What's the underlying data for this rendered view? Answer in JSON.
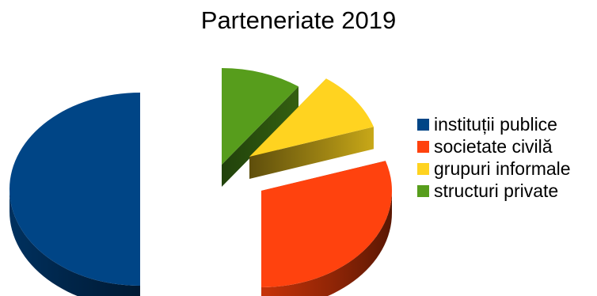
{
  "chart_data": {
    "type": "pie",
    "title": "Parteneriate 2019",
    "categories": [
      "instituții publice",
      "societate civilă",
      "grupuri informale",
      "structuri private"
    ],
    "values": [
      50,
      30,
      10,
      10
    ],
    "colors": [
      "#004586",
      "#ff420e",
      "#ffd320",
      "#579d1c"
    ],
    "legend_position": "right",
    "style": "3d-exploded"
  }
}
